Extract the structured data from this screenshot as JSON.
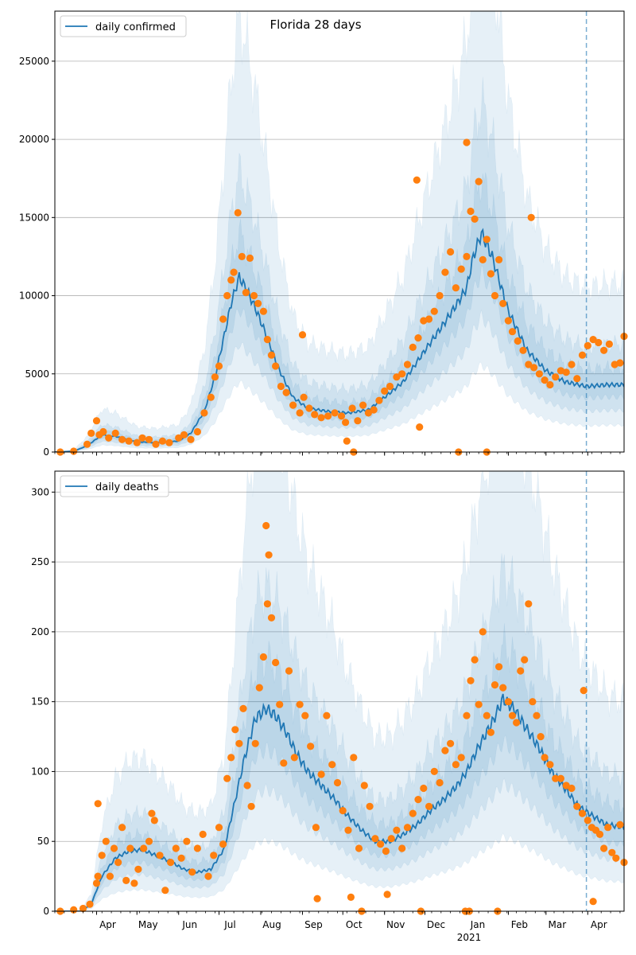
{
  "figure": {
    "title": "Florida 28 days",
    "year_label": "2021"
  },
  "colors": {
    "line": "#1f77b4",
    "band": "#1f77b4",
    "points": "#ff7f0e",
    "grid": "#b0b0b0",
    "vline": "#1f77b4"
  },
  "chart_data": [
    {
      "type": "line",
      "title": "Florida 28 days",
      "x_type": "date",
      "x_range": [
        "2020-03-01",
        "2021-04-28"
      ],
      "x_tick_labels": [
        "Apr",
        "May",
        "Jun",
        "Jul",
        "Aug",
        "Sep",
        "Oct",
        "Nov",
        "Dec",
        "Jan",
        "Feb",
        "Mar",
        "Apr"
      ],
      "x_tick_dates": [
        "2020-04-01",
        "2020-05-01",
        "2020-06-01",
        "2020-07-01",
        "2020-08-01",
        "2020-09-01",
        "2020-10-01",
        "2020-11-01",
        "2020-12-01",
        "2021-01-01",
        "2021-02-01",
        "2021-03-01",
        "2021-04-01"
      ],
      "ylim": [
        0,
        28200
      ],
      "y_ticks": [
        0,
        5000,
        10000,
        15000,
        20000,
        25000
      ],
      "grid": "horizontal",
      "legend_position": "top-left",
      "forecast_start": "2021-03-31",
      "series": [
        {
          "name": "daily confirmed",
          "style": "line",
          "dates": [
            "2020-03-01",
            "2020-03-15",
            "2020-03-25",
            "2020-04-05",
            "2020-04-15",
            "2020-05-01",
            "2020-05-15",
            "2020-06-01",
            "2020-06-10",
            "2020-06-20",
            "2020-06-28",
            "2020-07-05",
            "2020-07-10",
            "2020-07-16",
            "2020-07-22",
            "2020-07-28",
            "2020-08-05",
            "2020-08-15",
            "2020-08-25",
            "2020-09-05",
            "2020-09-20",
            "2020-10-05",
            "2020-10-20",
            "2020-11-01",
            "2020-11-15",
            "2020-12-01",
            "2020-12-15",
            "2020-12-25",
            "2021-01-01",
            "2021-01-06",
            "2021-01-12",
            "2021-01-20",
            "2021-02-01",
            "2021-02-15",
            "2021-03-01",
            "2021-03-15",
            "2021-03-31",
            "2021-04-15",
            "2021-04-28"
          ],
          "values": [
            0,
            50,
            400,
            1100,
            1000,
            650,
            600,
            700,
            1200,
            2600,
            4800,
            7500,
            9500,
            11200,
            10300,
            9200,
            7500,
            5200,
            3500,
            2800,
            2600,
            2500,
            2700,
            3500,
            4500,
            6500,
            8200,
            9500,
            10500,
            12500,
            14000,
            12500,
            9000,
            6500,
            5200,
            4500,
            4200,
            4300,
            4300
          ]
        },
        {
          "name": "",
          "style": "uncertainty-bands",
          "levels": [
            "inner",
            "middle",
            "outer"
          ],
          "upper_multipliers": [
            1.25,
            1.6,
            2.5
          ],
          "lower_multipliers": [
            0.82,
            0.62,
            0.4
          ]
        },
        {
          "name": "",
          "style": "scatter",
          "dates": [
            "2020-03-05",
            "2020-03-15",
            "2020-03-25",
            "2020-03-28",
            "2020-04-01",
            "2020-04-03",
            "2020-04-06",
            "2020-04-10",
            "2020-04-15",
            "2020-04-20",
            "2020-04-25",
            "2020-05-01",
            "2020-05-05",
            "2020-05-10",
            "2020-05-15",
            "2020-05-20",
            "2020-05-25",
            "2020-06-01",
            "2020-06-05",
            "2020-06-10",
            "2020-06-15",
            "2020-06-20",
            "2020-06-25",
            "2020-06-28",
            "2020-07-01",
            "2020-07-04",
            "2020-07-07",
            "2020-07-10",
            "2020-07-12",
            "2020-07-15",
            "2020-07-18",
            "2020-07-21",
            "2020-07-24",
            "2020-07-27",
            "2020-07-30",
            "2020-08-03",
            "2020-08-06",
            "2020-08-09",
            "2020-08-12",
            "2020-08-16",
            "2020-08-20",
            "2020-08-25",
            "2020-08-30",
            "2020-09-02",
            "2020-09-06",
            "2020-09-10",
            "2020-09-15",
            "2020-09-20",
            "2020-09-25",
            "2020-09-30",
            "2020-10-03",
            "2020-10-08",
            "2020-10-12",
            "2020-10-16",
            "2020-10-20",
            "2020-10-24",
            "2020-10-28",
            "2020-11-01",
            "2020-11-05",
            "2020-11-10",
            "2020-11-14",
            "2020-11-18",
            "2020-11-22",
            "2020-11-26",
            "2020-11-30",
            "2020-12-04",
            "2020-12-08",
            "2020-12-12",
            "2020-12-16",
            "2020-12-20",
            "2020-12-24",
            "2020-12-28",
            "2021-01-01",
            "2021-01-04",
            "2021-01-07",
            "2021-01-10",
            "2021-01-13",
            "2021-01-16",
            "2021-01-19",
            "2021-01-22",
            "2021-01-25",
            "2021-01-28",
            "2021-02-01",
            "2021-02-04",
            "2021-02-08",
            "2021-02-12",
            "2021-02-16",
            "2021-02-20",
            "2021-02-24",
            "2021-02-28",
            "2021-03-04",
            "2021-03-08",
            "2021-03-12",
            "2021-03-16",
            "2021-03-20",
            "2021-03-24",
            "2021-03-28",
            "2021-04-01",
            "2021-04-05",
            "2021-04-09",
            "2021-04-13",
            "2021-04-17",
            "2021-04-21",
            "2021-04-25",
            "2021-04-28",
            "2020-09-01",
            "2020-10-04",
            "2020-10-09",
            "2020-11-25",
            "2020-12-26",
            "2021-01-01",
            "2021-01-16",
            "2020-11-27",
            "2021-02-18"
          ],
          "values": [
            0,
            50,
            500,
            1200,
            2000,
            1100,
            1300,
            900,
            1200,
            800,
            700,
            600,
            900,
            800,
            500,
            700,
            600,
            900,
            1100,
            800,
            1300,
            2500,
            3500,
            4800,
            5500,
            8500,
            10000,
            11000,
            11500,
            15300,
            12500,
            10200,
            12400,
            10000,
            9500,
            9000,
            7200,
            6200,
            5500,
            4200,
            3800,
            3000,
            2500,
            3500,
            2800,
            2400,
            2200,
            2300,
            2500,
            2300,
            1900,
            2800,
            2000,
            3000,
            2500,
            2700,
            3300,
            3900,
            4200,
            4800,
            5000,
            5600,
            6700,
            7300,
            8400,
            8500,
            9000,
            10000,
            11500,
            12800,
            10500,
            11700,
            12500,
            15400,
            14900,
            17300,
            12300,
            13600,
            11400,
            10000,
            12300,
            9500,
            8400,
            7700,
            7100,
            6500,
            5600,
            5400,
            5000,
            4600,
            4300,
            4800,
            5200,
            5100,
            5600,
            4700,
            6200,
            6800,
            7200,
            7000,
            6500,
            6900,
            5600,
            5700,
            7400,
            7500,
            700,
            0,
            17400,
            0,
            19800,
            0,
            1600,
            15000
          ]
        }
      ]
    },
    {
      "type": "line",
      "x_type": "date",
      "x_range": [
        "2020-03-01",
        "2021-04-28"
      ],
      "x_tick_labels": [
        "Apr",
        "May",
        "Jun",
        "Jul",
        "Aug",
        "Sep",
        "Oct",
        "Nov",
        "Dec",
        "Jan",
        "Feb",
        "Mar",
        "Apr"
      ],
      "x_tick_dates": [
        "2020-04-01",
        "2020-05-01",
        "2020-06-01",
        "2020-07-01",
        "2020-08-01",
        "2020-09-01",
        "2020-10-01",
        "2020-11-01",
        "2020-12-01",
        "2021-01-01",
        "2021-02-01",
        "2021-03-01",
        "2021-04-01"
      ],
      "ylim": [
        0,
        315
      ],
      "y_ticks": [
        0,
        50,
        100,
        150,
        200,
        250,
        300
      ],
      "grid": "horizontal",
      "legend_position": "top-left",
      "forecast_start": "2021-03-31",
      "series": [
        {
          "name": "daily deaths",
          "style": "line",
          "dates": [
            "2020-03-01",
            "2020-03-20",
            "2020-03-28",
            "2020-04-05",
            "2020-04-15",
            "2020-04-25",
            "2020-05-05",
            "2020-05-15",
            "2020-05-25",
            "2020-06-05",
            "2020-06-15",
            "2020-06-25",
            "2020-07-05",
            "2020-07-12",
            "2020-07-20",
            "2020-07-28",
            "2020-08-05",
            "2020-08-12",
            "2020-08-20",
            "2020-08-28",
            "2020-09-05",
            "2020-09-15",
            "2020-09-25",
            "2020-10-05",
            "2020-10-15",
            "2020-10-25",
            "2020-11-05",
            "2020-11-15",
            "2020-11-25",
            "2020-12-05",
            "2020-12-15",
            "2020-12-25",
            "2021-01-01",
            "2021-01-10",
            "2021-01-20",
            "2021-01-28",
            "2021-02-05",
            "2021-02-15",
            "2021-02-25",
            "2021-03-05",
            "2021-03-15",
            "2021-03-25",
            "2021-04-05",
            "2021-04-15",
            "2021-04-28"
          ],
          "values": [
            0,
            0,
            5,
            25,
            38,
            43,
            44,
            40,
            36,
            30,
            28,
            30,
            45,
            75,
            110,
            138,
            145,
            140,
            128,
            112,
            100,
            90,
            80,
            68,
            58,
            50,
            50,
            55,
            62,
            72,
            80,
            90,
            100,
            118,
            135,
            152,
            145,
            130,
            115,
            100,
            88,
            75,
            68,
            62,
            60
          ]
        },
        {
          "name": "",
          "style": "uncertainty-bands",
          "levels": [
            "inner",
            "middle",
            "outer"
          ],
          "upper_multipliers": [
            1.25,
            1.6,
            2.5
          ],
          "lower_multipliers": [
            0.8,
            0.6,
            0.35
          ]
        },
        {
          "name": "",
          "style": "scatter",
          "dates": [
            "2020-03-05",
            "2020-03-15",
            "2020-03-22",
            "2020-03-27",
            "2020-04-01",
            "2020-04-02",
            "2020-04-05",
            "2020-04-08",
            "2020-04-11",
            "2020-04-14",
            "2020-04-17",
            "2020-04-20",
            "2020-04-23",
            "2020-04-26",
            "2020-04-29",
            "2020-05-02",
            "2020-05-06",
            "2020-05-10",
            "2020-05-14",
            "2020-05-18",
            "2020-05-22",
            "2020-05-26",
            "2020-05-30",
            "2020-06-03",
            "2020-06-07",
            "2020-06-11",
            "2020-06-15",
            "2020-06-19",
            "2020-06-23",
            "2020-06-27",
            "2020-07-01",
            "2020-07-04",
            "2020-07-07",
            "2020-07-10",
            "2020-07-13",
            "2020-07-16",
            "2020-07-19",
            "2020-07-22",
            "2020-07-25",
            "2020-07-28",
            "2020-07-31",
            "2020-08-03",
            "2020-08-06",
            "2020-08-09",
            "2020-08-12",
            "2020-08-15",
            "2020-08-18",
            "2020-08-22",
            "2020-08-26",
            "2020-08-30",
            "2020-09-03",
            "2020-09-07",
            "2020-09-11",
            "2020-09-15",
            "2020-09-19",
            "2020-09-23",
            "2020-09-27",
            "2020-10-01",
            "2020-10-05",
            "2020-10-09",
            "2020-10-13",
            "2020-10-17",
            "2020-10-21",
            "2020-10-25",
            "2020-10-29",
            "2020-11-02",
            "2020-11-06",
            "2020-11-10",
            "2020-11-14",
            "2020-11-18",
            "2020-11-22",
            "2020-11-26",
            "2020-11-30",
            "2020-12-04",
            "2020-12-08",
            "2020-12-12",
            "2020-12-16",
            "2020-12-20",
            "2020-12-24",
            "2020-12-28",
            "2021-01-01",
            "2021-01-04",
            "2021-01-07",
            "2021-01-10",
            "2021-01-13",
            "2021-01-16",
            "2021-01-19",
            "2021-01-22",
            "2021-01-25",
            "2021-01-28",
            "2021-02-01",
            "2021-02-04",
            "2021-02-07",
            "2021-02-10",
            "2021-02-13",
            "2021-02-16",
            "2021-02-19",
            "2021-02-22",
            "2021-02-25",
            "2021-02-28",
            "2021-03-04",
            "2021-03-08",
            "2021-03-12",
            "2021-03-16",
            "2021-03-20",
            "2021-03-24",
            "2021-03-28",
            "2021-04-01",
            "2021-04-04",
            "2021-04-07",
            "2021-04-10",
            "2021-04-13",
            "2021-04-16",
            "2021-04-19",
            "2021-04-22",
            "2021-04-25",
            "2021-04-28",
            "2020-04-02",
            "2020-05-12",
            "2020-08-07",
            "2020-08-05",
            "2020-09-12",
            "2020-10-07",
            "2020-10-15",
            "2020-11-03",
            "2020-11-28",
            "2020-12-31",
            "2021-01-03",
            "2021-01-24",
            "2021-03-29",
            "2021-04-05"
          ],
          "values": [
            0,
            1,
            2,
            5,
            20,
            25,
            40,
            50,
            25,
            45,
            35,
            60,
            22,
            45,
            20,
            30,
            45,
            50,
            65,
            40,
            15,
            35,
            45,
            38,
            50,
            28,
            45,
            55,
            25,
            40,
            60,
            48,
            95,
            110,
            130,
            120,
            145,
            90,
            75,
            120,
            160,
            182,
            220,
            210,
            178,
            148,
            106,
            172,
            110,
            148,
            140,
            118,
            60,
            98,
            140,
            105,
            92,
            72,
            58,
            110,
            45,
            90,
            75,
            52,
            48,
            43,
            52,
            58,
            45,
            60,
            70,
            80,
            88,
            75,
            100,
            92,
            115,
            120,
            105,
            110,
            140,
            165,
            180,
            148,
            200,
            140,
            128,
            162,
            175,
            160,
            150,
            140,
            135,
            172,
            180,
            220,
            150,
            140,
            125,
            110,
            105,
            95,
            95,
            90,
            88,
            75,
            70,
            65,
            60,
            58,
            55,
            45,
            60,
            42,
            38,
            62,
            35,
            77,
            70,
            255,
            276,
            9,
            10,
            0,
            12,
            0,
            0,
            0,
            0,
            158,
            7
          ]
        }
      ]
    }
  ]
}
